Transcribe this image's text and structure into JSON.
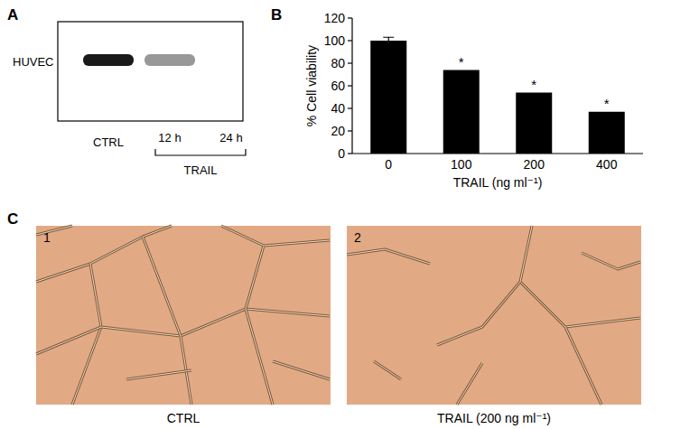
{
  "panels": [
    "A",
    "B",
    "C"
  ],
  "blot": {
    "row_label": "HUVEC",
    "lanes": [
      "CTRL",
      "12 h",
      "24 h"
    ],
    "group_label": "TRAIL",
    "band_intensity": [
      1,
      0.45,
      0
    ]
  },
  "chart_data": {
    "type": "bar",
    "categories": [
      "0",
      "100",
      "200",
      "400"
    ],
    "values": [
      100,
      74,
      54,
      37
    ],
    "errors": [
      3,
      null,
      null,
      null
    ],
    "significance": [
      null,
      "*",
      "*",
      "*"
    ],
    "color": "#000000",
    "x_label": "TRAIL (ng ml⁻¹)",
    "y_label": "% Cell viability",
    "ylim": [
      0,
      120
    ],
    "yticks": [
      0,
      20,
      40,
      60,
      80,
      100,
      120
    ],
    "grid": false
  },
  "images": [
    {
      "number": "1",
      "caption": "CTRL"
    },
    {
      "number": "2",
      "caption": "TRAIL (200 ng ml⁻¹)"
    }
  ]
}
